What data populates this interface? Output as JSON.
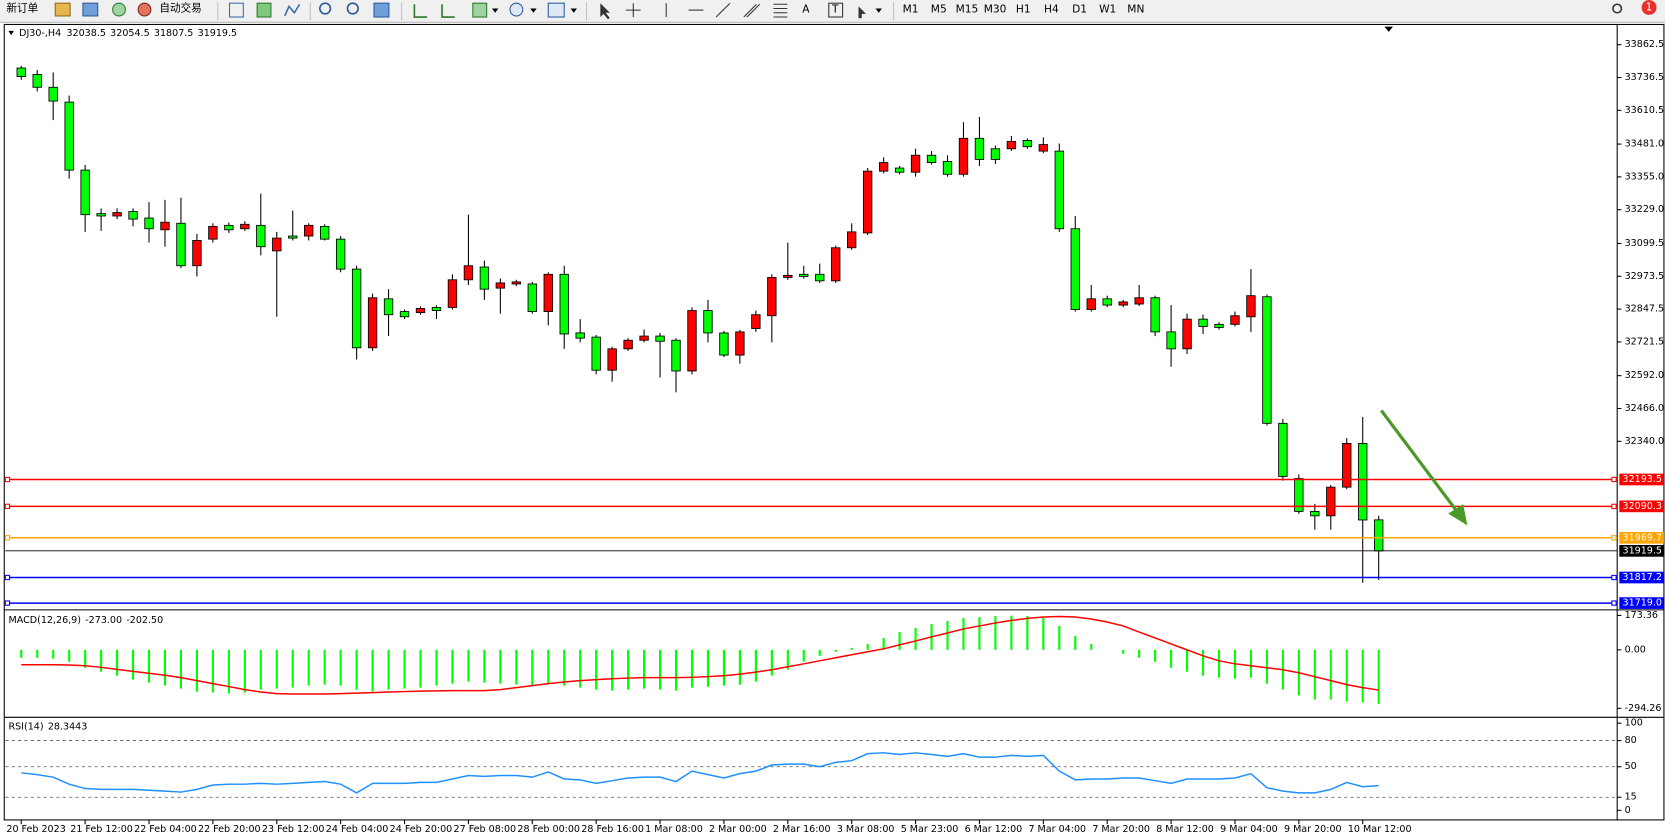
{
  "toolbar": {
    "new_order": "新订单",
    "auto_trading": "自动交易",
    "text_tools": [
      "A",
      "T"
    ],
    "timeframes": [
      "M1",
      "M5",
      "M15",
      "M30",
      "H1",
      "H4",
      "D1",
      "W1",
      "MN"
    ],
    "notifications": 1
  },
  "chart_data": [
    {
      "type": "candlestick",
      "symbol": "DJ30-,H4",
      "bull_color": "#ff0000",
      "bear_color": "#00ff00",
      "wick_color": "#000000",
      "categories": [
        "20 Feb 2023",
        null,
        null,
        null,
        "21 Feb 12:00",
        null,
        null,
        null,
        "22 Feb 04:00",
        null,
        null,
        null,
        "22 Feb 20:00",
        null,
        null,
        null,
        "23 Feb 12:00",
        null,
        null,
        null,
        "24 Feb 04:00",
        null,
        null,
        null,
        "24 Feb 20:00",
        null,
        null,
        null,
        "27 Feb 08:00",
        null,
        null,
        null,
        "28 Feb 00:00",
        null,
        null,
        null,
        "28 Feb 16:00",
        null,
        null,
        null,
        "1 Mar 08:00",
        null,
        null,
        null,
        "2 Mar 00:00",
        null,
        null,
        null,
        "2 Mar 16:00",
        null,
        null,
        null,
        "3 Mar 08:00",
        null,
        null,
        null,
        "5 Mar 23:00",
        null,
        null,
        null,
        "6 Mar 12:00",
        null,
        null,
        null,
        "7 Mar 04:00",
        null,
        null,
        null,
        "7 Mar 20:00",
        null,
        null,
        null,
        "8 Mar 12:00",
        null,
        null,
        null,
        "9 Mar 04:00",
        null,
        null,
        null,
        "9 Mar 20:00",
        null,
        null,
        null,
        "10 Mar 12:00",
        null
      ],
      "open": [
        33773,
        33748,
        33699,
        33642,
        33381,
        33214,
        33205,
        33222,
        33197,
        33152,
        33177,
        33014,
        33116,
        33169,
        33156,
        33169,
        33071,
        33128,
        33128,
        33165,
        33116,
        33001,
        32699,
        32887,
        32838,
        32834,
        32854,
        32854,
        32960,
        33009,
        32928,
        32944,
        32944,
        32838,
        32981,
        32756,
        32740,
        32613,
        32695,
        32728,
        32744,
        32728,
        32610,
        32842,
        32756,
        32671,
        32773,
        32822,
        32969,
        32981,
        32981,
        32956,
        33083,
        33140,
        33377,
        33389,
        33373,
        33438,
        33414,
        33365,
        33503,
        33463,
        33463,
        33495,
        33454,
        33454,
        33156,
        32846,
        32887,
        32863,
        32867,
        32891,
        32760,
        32695,
        32809,
        32789,
        32789,
        32818,
        32895,
        32409,
        32197,
        32071,
        32054,
        32164,
        32332,
        32038.5
      ],
      "high": [
        33781,
        33765,
        33756,
        33667,
        33401,
        33234,
        33234,
        33234,
        33258,
        33267,
        33275,
        33136,
        33177,
        33180,
        33185,
        33291,
        33144,
        33226,
        33177,
        33173,
        33128,
        33014,
        32907,
        32924,
        32846,
        32858,
        32862,
        32981,
        33210,
        33034,
        32965,
        32960,
        32952,
        32989,
        33014,
        32809,
        32748,
        32703,
        32736,
        32769,
        32756,
        32736,
        32854,
        32883,
        32764,
        32768,
        32842,
        32981,
        33103,
        33014,
        33022,
        33091,
        33177,
        33389,
        33430,
        33397,
        33463,
        33454,
        33438,
        33565,
        33585,
        33475,
        33512,
        33503,
        33507,
        33483,
        33205,
        32940,
        32899,
        32883,
        32940,
        32899,
        32863,
        32830,
        32826,
        32797,
        32838,
        33001,
        32903,
        32426,
        32213,
        32100,
        32172,
        32352,
        32434,
        32054.5
      ],
      "low": [
        33728,
        33683,
        33573,
        33348,
        33144,
        33148,
        33193,
        33165,
        33103,
        33087,
        33005,
        32973,
        33103,
        33140,
        33148,
        33054,
        32818,
        33111,
        33111,
        33111,
        32989,
        32654,
        32687,
        32744,
        32810,
        32826,
        32809,
        32846,
        32940,
        32883,
        32830,
        32936,
        32830,
        32785,
        32695,
        32720,
        32597,
        32569,
        32687,
        32720,
        32585,
        32528,
        32597,
        32720,
        32663,
        32638,
        32760,
        32720,
        32960,
        32965,
        32948,
        32948,
        33075,
        33132,
        33369,
        33365,
        33356,
        33402,
        33356,
        33356,
        33397,
        33405,
        33455,
        33463,
        33446,
        33144,
        32838,
        32838,
        32855,
        32855,
        32859,
        32744,
        32626,
        32675,
        32752,
        32769,
        32781,
        32760,
        32401,
        32189,
        32062,
        32001,
        32001,
        32156,
        31797,
        31807.5
      ],
      "close": [
        33740,
        33699,
        33646,
        33381,
        33210,
        33205,
        33218,
        33193,
        33156,
        33181,
        33014,
        33111,
        33165,
        33152,
        33173,
        33087,
        33120,
        33120,
        33169,
        33116,
        33001,
        32699,
        32891,
        32826,
        32818,
        32850,
        32842,
        32960,
        33014,
        32924,
        32948,
        32952,
        32838,
        32981,
        32752,
        32736,
        32613,
        32695,
        32728,
        32744,
        32724,
        32610,
        32842,
        32756,
        32671,
        32760,
        32826,
        32969,
        32977,
        32973,
        32956,
        33083,
        33144,
        33377,
        33410,
        33373,
        33438,
        33410,
        33365,
        33503,
        33422,
        33422,
        33491,
        33471,
        33479,
        33156,
        32846,
        32887,
        32863,
        32875,
        32891,
        32760,
        32695,
        32809,
        32781,
        32777,
        32822,
        32899,
        32409,
        32205,
        32071,
        32054,
        32164,
        32332,
        32038,
        31919.5
      ],
      "ylim": [
        31699,
        33932
      ],
      "yticks": [
        33862.5,
        33736.5,
        33610.5,
        {
          "value": 33481,
          "label": "33481.0"
        },
        {
          "value": 33355,
          "label": "33355.0"
        },
        {
          "value": 33229,
          "label": "33229.0"
        },
        33099.5,
        32973.5,
        32847.5,
        32721.5,
        {
          "value": 32592,
          "label": "32592.0"
        },
        {
          "value": 32466,
          "label": "32466.0"
        },
        {
          "value": 32340,
          "label": "32340.0"
        }
      ],
      "levels": [
        {
          "price": 32193.5,
          "color": "#ff0000"
        },
        {
          "price": 32090.3,
          "color": "#ff0000"
        },
        {
          "price": 31969.7,
          "color": "#ffa500"
        },
        {
          "price": 31919.5,
          "color": "#000000"
        },
        {
          "price": 31817.2,
          "color": "#0000ff"
        },
        {
          "price": {
            "value": 31719,
            "label": "31719.0"
          },
          "color": "#0000ff"
        }
      ]
    },
    {
      "type": "macd",
      "title": "MACD(12,26,9)",
      "readout": [
        "-273.00",
        "-202.50"
      ],
      "ylim": [
        -326,
        193
      ],
      "yticks": [
        173.36,
        {
          "value": 0,
          "label": "0.00"
        },
        -294.26
      ],
      "series": [
        {
          "style": "bar",
          "color": "#00ff00",
          "values": [
            -40,
            -40,
            -45,
            -60,
            -90,
            -110,
            -130,
            -150,
            -165,
            -180,
            -195,
            -210,
            -215,
            -220,
            -215,
            -200,
            -195,
            -190,
            -180,
            -175,
            -180,
            -200,
            -210,
            -200,
            -195,
            -190,
            -180,
            -170,
            -160,
            -165,
            -170,
            -175,
            -180,
            -170,
            -180,
            -190,
            -200,
            -205,
            -200,
            -195,
            -200,
            -205,
            -190,
            -185,
            -180,
            -175,
            -160,
            -130,
            -100,
            -60,
            -30,
            -10,
            10,
            30,
            60,
            90,
            110,
            130,
            145,
            160,
            165,
            170,
            172,
            170,
            160,
            120,
            70,
            30,
            0,
            -20,
            -40,
            -60,
            -90,
            -110,
            -130,
            -140,
            -145,
            -140,
            -170,
            -200,
            -230,
            -250,
            -250,
            -260,
            -265,
            -273
          ]
        },
        {
          "style": "line",
          "color": "#ff0000",
          "values": [
            -75,
            -75,
            -75,
            -76,
            -80,
            -88,
            -98,
            -108,
            -118,
            -128,
            -140,
            -155,
            -170,
            -185,
            -200,
            -212,
            -220,
            -222,
            -222,
            -222,
            -220,
            -218,
            -215,
            -212,
            -210,
            -208,
            -206,
            -205,
            -205,
            -205,
            -200,
            -190,
            -180,
            -170,
            -162,
            -155,
            -150,
            -145,
            -142,
            -140,
            -140,
            -140,
            -138,
            -135,
            -130,
            -122,
            -112,
            -100,
            -85,
            -70,
            -55,
            -40,
            -25,
            -10,
            5,
            25,
            45,
            65,
            85,
            105,
            120,
            135,
            148,
            158,
            165,
            168,
            165,
            155,
            140,
            120,
            90,
            60,
            30,
            0,
            -30,
            -55,
            -70,
            -80,
            -90,
            -100,
            -115,
            -135,
            -155,
            -175,
            -190,
            -202.5
          ]
        }
      ]
    },
    {
      "type": "rsi",
      "title": "RSI(14)",
      "level_grid": true,
      "ylim": [
        -9.8,
        104.9
      ],
      "yticks": [
        100,
        80,
        50,
        15,
        0
      ],
      "series": [
        {
          "style": "line",
          "color": "#1e90ff",
          "values": [
            43,
            41,
            38,
            30,
            25,
            24,
            24,
            24,
            23,
            22,
            21,
            24,
            29,
            30,
            30,
            31,
            30,
            31,
            32,
            33,
            30,
            20,
            31,
            31,
            31,
            32,
            32,
            36,
            40,
            39,
            40,
            40,
            38,
            44,
            36,
            35,
            31,
            34,
            37,
            38,
            38,
            33,
            45,
            41,
            37,
            42,
            45,
            52,
            53,
            53,
            50,
            55,
            57,
            65,
            66,
            64,
            66,
            64,
            62,
            65,
            61,
            61,
            63,
            62,
            63,
            45,
            35,
            36,
            36,
            37,
            37,
            34,
            31,
            36,
            36,
            36,
            37,
            42,
            26,
            22,
            20,
            20,
            24,
            32,
            27,
            28.3443
          ]
        }
      ]
    }
  ]
}
